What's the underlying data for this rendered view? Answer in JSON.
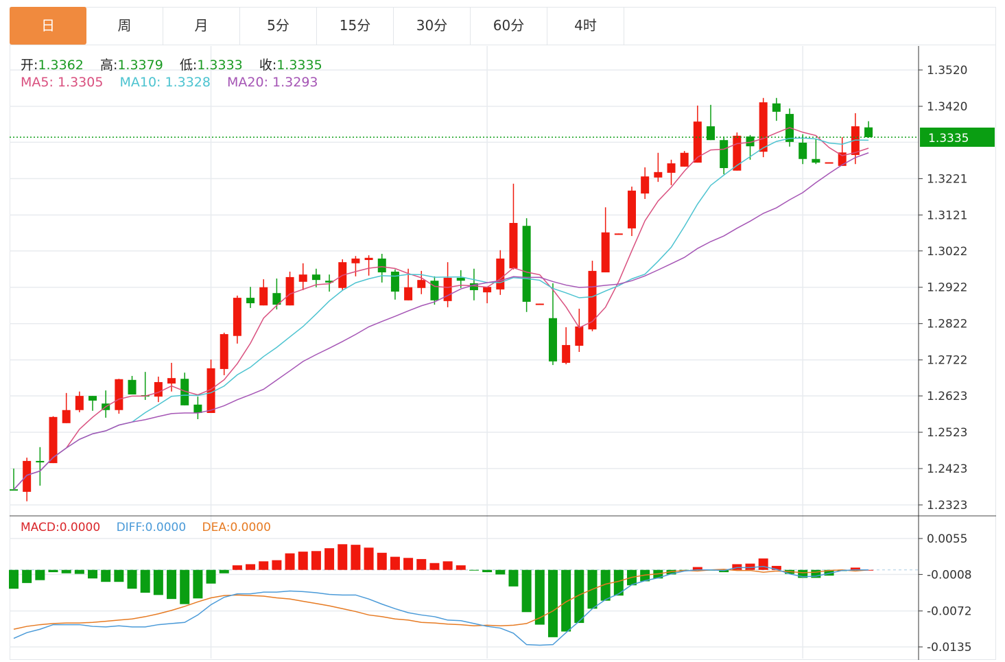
{
  "tabs": [
    {
      "label": "日",
      "active": true
    },
    {
      "label": "周",
      "active": false
    },
    {
      "label": "月",
      "active": false
    },
    {
      "label": "5分",
      "active": false
    },
    {
      "label": "15分",
      "active": false
    },
    {
      "label": "30分",
      "active": false
    },
    {
      "label": "60分",
      "active": false
    },
    {
      "label": "4时",
      "active": false
    }
  ],
  "ohlc_legend": {
    "open_label": "开:",
    "open": "1.3362",
    "high_label": "高:",
    "high": "1.3379",
    "low_label": "低:",
    "low": "1.3333",
    "close_label": "收:",
    "close": "1.3335"
  },
  "ma_legend": {
    "ma5_label": "MA5:",
    "ma5": "1.3305",
    "ma10_label": "MA10:",
    "ma10": "1.3328",
    "ma20_label": "MA20:",
    "ma20": "1.3293"
  },
  "macd_legend": {
    "macd_label": "MACD:",
    "macd": "0.0000",
    "diff_label": "DIFF:",
    "diff": "0.0000",
    "dea_label": "DEA:",
    "dea": "0.0000"
  },
  "colors": {
    "up": "#f0190d",
    "down": "#0a9e12",
    "ma5": "#d9507f",
    "ma10": "#4cc3d0",
    "ma20": "#a555b5",
    "macd": "#d9262a",
    "diff": "#4a9ad8",
    "dea": "#e67a22",
    "active_tab": "#f08a3e"
  },
  "chart_data": [
    {
      "type": "candlestick",
      "ylim": [
        1.2323,
        1.352
      ],
      "yticks": [
        "1.3520",
        "1.3420",
        "1.3221",
        "1.3121",
        "1.3022",
        "1.2922",
        "1.2822",
        "1.2722",
        "1.2623",
        "1.2523",
        "1.2423",
        "1.2323"
      ],
      "grid": true,
      "current_price": "1.3335",
      "ohlc": [
        [
          1.2366,
          1.2423,
          1.2365,
          1.2365
        ],
        [
          1.2359,
          1.2453,
          1.2333,
          1.2444
        ],
        [
          1.2444,
          1.2482,
          1.2376,
          1.244
        ],
        [
          1.2438,
          1.2567,
          1.2438,
          1.2565
        ],
        [
          1.2548,
          1.2631,
          1.2548,
          1.2584
        ],
        [
          1.2584,
          1.2635,
          1.2578,
          1.2623
        ],
        [
          1.2623,
          1.2623,
          1.2582,
          1.261
        ],
        [
          1.2602,
          1.2638,
          1.2563,
          1.2584
        ],
        [
          1.2584,
          1.267,
          1.2574,
          1.2669
        ],
        [
          1.2667,
          1.2678,
          1.2627,
          1.2627
        ],
        [
          1.2625,
          1.2689,
          1.2612,
          1.2623
        ],
        [
          1.2621,
          1.2676,
          1.2606,
          1.2661
        ],
        [
          1.2657,
          1.2714,
          1.2635,
          1.2672
        ],
        [
          1.267,
          1.2687,
          1.2597,
          1.2597
        ],
        [
          1.2599,
          1.2621,
          1.2559,
          1.2576
        ],
        [
          1.2576,
          1.2723,
          1.2576,
          1.2699
        ],
        [
          1.2697,
          1.2797,
          1.268,
          1.2793
        ],
        [
          1.2788,
          1.2899,
          1.2767,
          1.2893
        ],
        [
          1.2893,
          1.2923,
          1.2865,
          1.2878
        ],
        [
          1.2872,
          1.2944,
          1.2872,
          1.2922
        ],
        [
          1.2906,
          1.2946,
          1.2861,
          1.2874
        ],
        [
          1.2872,
          1.2965,
          1.2872,
          1.295
        ],
        [
          1.2937,
          1.2988,
          1.2914,
          1.2957
        ],
        [
          1.2957,
          1.2973,
          1.2922,
          1.2942
        ],
        [
          1.294,
          1.2957,
          1.291,
          1.2935
        ],
        [
          1.292,
          1.2999,
          1.2914,
          1.2991
        ],
        [
          1.2988,
          1.3008,
          1.2952,
          1.3001
        ],
        [
          1.2997,
          1.301,
          1.2954,
          1.3003
        ],
        [
          1.3001,
          1.3014,
          1.2935,
          1.2963
        ],
        [
          1.2965,
          1.2971,
          1.2888,
          1.291
        ],
        [
          1.2886,
          1.2973,
          1.2886,
          1.2922
        ],
        [
          1.292,
          1.2967,
          1.2903,
          1.2942
        ],
        [
          1.294,
          1.2952,
          1.2874,
          1.2886
        ],
        [
          1.2884,
          1.2991,
          1.2867,
          1.2948
        ],
        [
          1.2948,
          1.2969,
          1.292,
          1.294
        ],
        [
          1.2933,
          1.2973,
          1.2886,
          1.2914
        ],
        [
          1.2908,
          1.2923,
          1.2878,
          1.2923
        ],
        [
          1.2916,
          1.3024,
          1.2901,
          1.3001
        ],
        [
          1.2974,
          1.3207,
          1.2971,
          1.3099
        ],
        [
          1.3091,
          1.3112,
          1.2854,
          1.2882
        ],
        [
          1.2875,
          1.2877,
          1.2875,
          1.2877
        ],
        [
          1.2837,
          1.2933,
          1.2708,
          1.2718
        ],
        [
          1.2714,
          1.2812,
          1.271,
          1.2763
        ],
        [
          1.2761,
          1.2863,
          1.2744,
          1.2814
        ],
        [
          1.2806,
          1.2995,
          1.2801,
          1.2967
        ],
        [
          1.2963,
          1.3142,
          1.2963,
          1.3073
        ],
        [
          1.3068,
          1.307,
          1.3068,
          1.307
        ],
        [
          1.3084,
          1.3199,
          1.3063,
          1.3188
        ],
        [
          1.318,
          1.3252,
          1.3165,
          1.3227
        ],
        [
          1.3224,
          1.3292,
          1.3212,
          1.3239
        ],
        [
          1.3237,
          1.3273,
          1.3203,
          1.3263
        ],
        [
          1.3254,
          1.3297,
          1.3254,
          1.3292
        ],
        [
          1.3265,
          1.3422,
          1.3265,
          1.3378
        ],
        [
          1.3365,
          1.3424,
          1.3327,
          1.3327
        ],
        [
          1.3327,
          1.3337,
          1.3233,
          1.325
        ],
        [
          1.3243,
          1.3348,
          1.3243,
          1.3339
        ],
        [
          1.3337,
          1.3341,
          1.3273,
          1.331
        ],
        [
          1.3295,
          1.3443,
          1.328,
          1.3431
        ],
        [
          1.3428,
          1.3443,
          1.338,
          1.3405
        ],
        [
          1.3399,
          1.3414,
          1.3309,
          1.3322
        ],
        [
          1.332,
          1.3343,
          1.3261,
          1.3275
        ],
        [
          1.3275,
          1.3331,
          1.3261,
          1.3265
        ],
        [
          1.3264,
          1.3266,
          1.3264,
          1.3266
        ],
        [
          1.3256,
          1.3335,
          1.3256,
          1.3293
        ],
        [
          1.3286,
          1.3401,
          1.3261,
          1.3365
        ],
        [
          1.3362,
          1.3379,
          1.3333,
          1.3335
        ]
      ],
      "ma_periods": [
        5,
        10,
        20
      ]
    },
    {
      "type": "bar+line",
      "ylim": [
        -0.0135,
        0.0055
      ],
      "yticks": [
        "0.0055",
        "-0.0008",
        "-0.0072",
        "-0.0135"
      ],
      "macd": [
        -0.0033,
        -0.0023,
        -0.0018,
        -0.0004,
        -0.0006,
        -0.0007,
        -0.0015,
        -0.0021,
        -0.0021,
        -0.0033,
        -0.004,
        -0.0044,
        -0.0051,
        -0.006,
        -0.005,
        -0.0024,
        -0.0006,
        0.0008,
        0.001,
        0.0015,
        0.0017,
        0.0029,
        0.0032,
        0.0033,
        0.0038,
        0.0045,
        0.0044,
        0.0039,
        0.003,
        0.0023,
        0.0021,
        0.0019,
        0.0012,
        0.0015,
        0.0008,
        -0.0001,
        -0.0004,
        -0.0008,
        -0.0029,
        -0.0074,
        -0.0096,
        -0.0118,
        -0.0108,
        -0.0093,
        -0.0068,
        -0.0054,
        -0.0045,
        -0.0027,
        -0.002,
        -0.0015,
        -0.0008,
        -0.0002,
        0.0005,
        -0.0001,
        -0.0004,
        0.001,
        0.0011,
        0.002,
        0.0007,
        -0.0007,
        -0.0014,
        -0.0014,
        -0.001,
        -0.0002,
        0.0004,
        0.0
      ],
      "diff": [
        -0.012,
        -0.011,
        -0.0104,
        -0.0096,
        -0.0096,
        -0.0096,
        -0.0099,
        -0.01,
        -0.0098,
        -0.01,
        -0.01,
        -0.0096,
        -0.0094,
        -0.0092,
        -0.0079,
        -0.0061,
        -0.0048,
        -0.0042,
        -0.0042,
        -0.0039,
        -0.0039,
        -0.0037,
        -0.0038,
        -0.004,
        -0.0043,
        -0.0044,
        -0.0044,
        -0.0051,
        -0.006,
        -0.0068,
        -0.0075,
        -0.0079,
        -0.0082,
        -0.0088,
        -0.0089,
        -0.0094,
        -0.0099,
        -0.0102,
        -0.0111,
        -0.0131,
        -0.0132,
        -0.0131,
        -0.011,
        -0.009,
        -0.0068,
        -0.0052,
        -0.0042,
        -0.0026,
        -0.0019,
        -0.0014,
        -0.0007,
        -0.0002,
        0.0,
        0.0,
        -0.0001,
        0.0004,
        0.0004,
        0.0006,
        0.0001,
        -0.0007,
        -0.0012,
        -0.0011,
        -0.0006,
        -0.0001,
        0.0,
        0.0
      ],
      "dea": [
        -0.0104,
        -0.0099,
        -0.0096,
        -0.0094,
        -0.0093,
        -0.0093,
        -0.0092,
        -0.009,
        -0.0088,
        -0.0086,
        -0.0082,
        -0.0077,
        -0.0071,
        -0.0064,
        -0.0056,
        -0.0049,
        -0.0045,
        -0.0044,
        -0.0045,
        -0.0046,
        -0.0049,
        -0.0051,
        -0.0055,
        -0.0059,
        -0.0063,
        -0.0068,
        -0.0073,
        -0.0079,
        -0.0082,
        -0.0086,
        -0.0088,
        -0.0092,
        -0.0093,
        -0.0095,
        -0.0096,
        -0.0098,
        -0.0097,
        -0.0098,
        -0.0097,
        -0.0094,
        -0.0084,
        -0.0072,
        -0.0056,
        -0.0044,
        -0.0034,
        -0.0025,
        -0.002,
        -0.0013,
        -0.0009,
        -0.0007,
        -0.0003,
        -0.0001,
        -0.0002,
        0.0,
        0.0001,
        -0.0001,
        -0.0001,
        -0.0004,
        -0.0002,
        -0.0003,
        -0.0005,
        -0.0004,
        -0.0001,
        0.0,
        -0.0002,
        0.0
      ]
    }
  ]
}
